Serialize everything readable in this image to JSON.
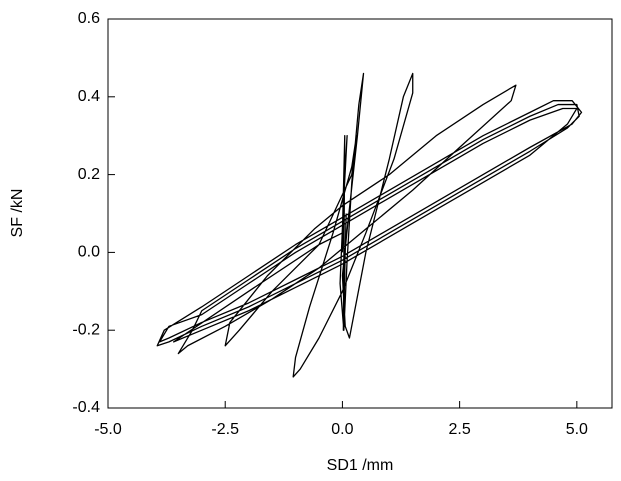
{
  "chart_data": {
    "type": "line",
    "x_label": "SD1 /mm",
    "y_label": "SF /kN",
    "color": "#000000",
    "xlim": [
      -5,
      5.75
    ],
    "ylim": [
      -0.4,
      0.6
    ],
    "xticks": [
      {
        "value": -5,
        "label": "-5.0"
      },
      {
        "value": -2.5,
        "label": "-2.5"
      },
      {
        "value": 0,
        "label": "0.0"
      },
      {
        "value": 2.5,
        "label": "2.5"
      },
      {
        "value": 5,
        "label": "5.0"
      }
    ],
    "yticks": [
      {
        "value": -0.4,
        "label": "-0.4"
      },
      {
        "value": -0.2,
        "label": "-0.2"
      },
      {
        "value": 0,
        "label": "0.0"
      },
      {
        "value": 0.2,
        "label": "0.2"
      },
      {
        "value": 0.4,
        "label": "0.4"
      },
      {
        "value": 0.6,
        "label": "0.6"
      }
    ],
    "x": [
      0,
      0.05,
      0.1,
      0.02,
      -0.05,
      0.03,
      0.1,
      0.2,
      0.35,
      0.45,
      0.32,
      0.12,
      0.0,
      0.06,
      0.15,
      0.5,
      1.0,
      1.3,
      1.5,
      1.5,
      1.1,
      0.5,
      0.0,
      -0.5,
      -0.9,
      -1.05,
      -1.0,
      -0.7,
      -0.2,
      0.2,
      0.3,
      0.2,
      -0.5,
      -1.5,
      -2.2,
      -2.5,
      -2.4,
      -1.6,
      -0.6,
      0.0,
      1.0,
      2.0,
      3.0,
      3.7,
      3.6,
      2.5,
      1.5,
      0.5,
      -0.5,
      -1.5,
      -2.5,
      -3.3,
      -3.5,
      -3.2,
      -3.0,
      -2.0,
      -1.0,
      0.0,
      1.0,
      2.0,
      3.0,
      4.0,
      4.6,
      5.0,
      5.05,
      4.8,
      4.0,
      3.0,
      2.0,
      1.0,
      0.0,
      -1.0,
      -2.0,
      -3.0,
      -3.7,
      -3.95,
      -3.8,
      -3.0,
      -2.0,
      -1.0,
      0.0,
      1.0,
      2.0,
      3.0,
      4.0,
      4.5,
      4.9,
      5.1,
      4.9,
      4.0,
      3.0,
      2.0,
      1.0,
      0.0,
      -1.0,
      -2.0,
      -3.0,
      -3.7,
      -3.9,
      -3.7,
      -3.0,
      -2.0,
      -1.0,
      0.0,
      1.0,
      2.0,
      3.0,
      4.0,
      4.7,
      5.0,
      4.8,
      4.0,
      3.0,
      2.0,
      1.0,
      0.0,
      -1.0,
      -2.0,
      -3.0,
      -3.6,
      -2.0,
      -0.5,
      0.0,
      0.05,
      0.02,
      0.08
    ],
    "values": [
      0,
      0.2,
      0.3,
      0.12,
      -0.08,
      -0.2,
      -0.02,
      0.18,
      0.38,
      0.46,
      0.3,
      0.08,
      -0.06,
      -0.19,
      -0.22,
      0.0,
      0.24,
      0.4,
      0.46,
      0.41,
      0.24,
      0.05,
      -0.1,
      -0.22,
      -0.3,
      -0.32,
      -0.27,
      -0.14,
      0.05,
      0.22,
      0.3,
      0.2,
      0.02,
      -0.1,
      -0.2,
      -0.24,
      -0.18,
      -0.06,
      0.06,
      0.12,
      0.2,
      0.3,
      0.38,
      0.43,
      0.39,
      0.27,
      0.16,
      0.06,
      -0.04,
      -0.12,
      -0.19,
      -0.24,
      -0.26,
      -0.2,
      -0.15,
      -0.07,
      0.01,
      0.08,
      0.15,
      0.22,
      0.29,
      0.35,
      0.38,
      0.38,
      0.35,
      0.32,
      0.26,
      0.19,
      0.12,
      0.05,
      -0.02,
      -0.08,
      -0.14,
      -0.19,
      -0.23,
      -0.24,
      -0.2,
      -0.14,
      -0.06,
      0.02,
      0.09,
      0.16,
      0.23,
      0.3,
      0.36,
      0.39,
      0.39,
      0.36,
      0.33,
      0.27,
      0.2,
      0.13,
      0.06,
      -0.01,
      -0.07,
      -0.13,
      -0.18,
      -0.22,
      -0.23,
      -0.19,
      -0.16,
      -0.08,
      0.0,
      0.07,
      0.14,
      0.21,
      0.28,
      0.34,
      0.37,
      0.37,
      0.33,
      0.25,
      0.18,
      0.11,
      0.04,
      -0.03,
      -0.09,
      -0.15,
      -0.2,
      -0.23,
      -0.1,
      0.02,
      0.05,
      0.3,
      -0.2,
      0.1
    ]
  }
}
